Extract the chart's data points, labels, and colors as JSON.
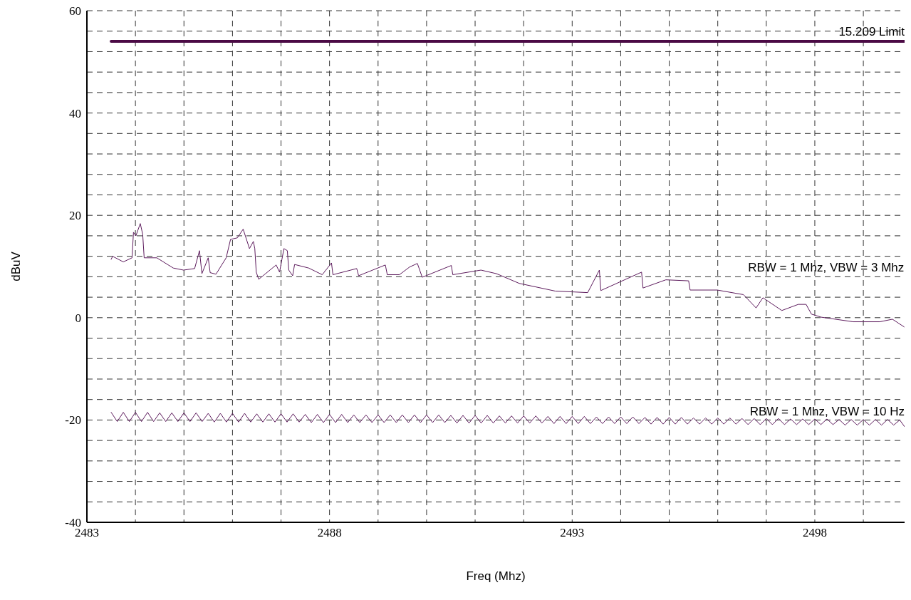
{
  "chart_data": {
    "type": "line",
    "xlabel": "Freq (Mhz)",
    "ylabel": "dBuV",
    "xlim": [
      2483,
      2499.85
    ],
    "xticks": [
      2483,
      {
        "value": 2484,
        "label": null
      },
      {
        "value": 2485,
        "label": null
      },
      {
        "value": 2486,
        "label": null
      },
      {
        "value": 2487,
        "label": null
      },
      2488,
      {
        "value": 2489,
        "label": null
      },
      {
        "value": 2490,
        "label": null
      },
      {
        "value": 2491,
        "label": null
      },
      {
        "value": 2492,
        "label": null
      },
      2493,
      {
        "value": 2494,
        "label": null
      },
      {
        "value": 2495,
        "label": null
      },
      {
        "value": 2496,
        "label": null
      },
      {
        "value": 2497,
        "label": null
      },
      2498,
      {
        "value": 2499,
        "label": null
      }
    ],
    "ylim": [
      -40,
      60
    ],
    "yticks": [
      -40,
      {
        "value": -36,
        "label": null
      },
      {
        "value": -32,
        "label": null
      },
      {
        "value": -28,
        "label": null
      },
      {
        "value": -24,
        "label": null
      },
      -20,
      {
        "value": -16,
        "label": null
      },
      {
        "value": -12,
        "label": null
      },
      {
        "value": -8,
        "label": null
      },
      {
        "value": -4,
        "label": null
      },
      0,
      {
        "value": 4,
        "label": null
      },
      {
        "value": 8,
        "label": null
      },
      {
        "value": 12,
        "label": null
      },
      {
        "value": 16,
        "label": null
      },
      20,
      {
        "value": 24,
        "label": null
      },
      {
        "value": 28,
        "label": null
      },
      {
        "value": 32,
        "label": null
      },
      {
        "value": 36,
        "label": null
      },
      40,
      {
        "value": 44,
        "label": null
      },
      {
        "value": 48,
        "label": null
      },
      {
        "value": 52,
        "label": null
      },
      {
        "value": 56,
        "label": null
      },
      60
    ],
    "grid": true,
    "series": [
      {
        "name": "15.209 Limit",
        "color": "#4b0a45",
        "x": [
          2483.5,
          2499.85
        ],
        "values": [
          54,
          54
        ]
      },
      {
        "name": "RBW = 1 Mhz, VBW = 3 Mhz",
        "color": "#5c1a5c",
        "x": [
          2483.5,
          2483.53,
          2483.75,
          2483.93,
          2483.96,
          2484.01,
          2484.1,
          2484.15,
          2484.18,
          2484.44,
          2484.78,
          2484.99,
          2485.22,
          2485.32,
          2485.37,
          2485.5,
          2485.54,
          2485.66,
          2485.87,
          2485.96,
          2486.1,
          2486.22,
          2486.35,
          2486.43,
          2486.46,
          2486.49,
          2486.54,
          2486.9,
          2486.97,
          2487.06,
          2487.13,
          2487.16,
          2487.24,
          2487.28,
          2487.57,
          2487.85,
          2488.04,
          2488.07,
          2488.56,
          2488.6,
          2489.15,
          2489.19,
          2489.44,
          2489.65,
          2489.81,
          2489.91,
          2490.51,
          2490.54,
          2491.12,
          2491.44,
          2491.91,
          2492.65,
          2493.32,
          2493.56,
          2493.59,
          2494.43,
          2494.46,
          2494.93,
          2495.4,
          2495.43,
          2495.99,
          2496.53,
          2496.79,
          2496.93,
          2497.32,
          2497.66,
          2497.82,
          2497.93,
          2498.13,
          2498.79,
          2499.34,
          2499.6,
          2499.84
        ],
        "values": [
          11.4,
          12,
          10.9,
          11.7,
          16.7,
          16,
          18.4,
          16.3,
          11.7,
          11.7,
          9.7,
          9.3,
          9.6,
          13.1,
          8.6,
          11.7,
          8.8,
          8.5,
          11.7,
          15.3,
          15.6,
          17.3,
          13.5,
          14.9,
          13.5,
          8.9,
          7.5,
          10.3,
          8.9,
          13.5,
          13.1,
          9.3,
          8.2,
          10.4,
          9.7,
          8.4,
          10.7,
          8.4,
          9.6,
          8.2,
          10.3,
          8.4,
          8.4,
          9.9,
          10.6,
          7.9,
          10.2,
          8.4,
          9.3,
          8.6,
          6.7,
          5.2,
          4.9,
          9.3,
          5.3,
          8.9,
          5.8,
          7.4,
          7.2,
          5.4,
          5.4,
          4.5,
          1.9,
          3.9,
          1.4,
          2.6,
          2.6,
          0.7,
          0.1,
          -0.8,
          -0.8,
          -0.3,
          -1.8
        ]
      },
      {
        "name": "RBW = 1 Mhz, VBW = 10 Hz",
        "color": "#5c1a5c",
        "x": [
          2483.5,
          2483.625,
          2483.75,
          2483.875,
          2484,
          2484.125,
          2484.25,
          2484.375,
          2484.5,
          2484.625,
          2484.75,
          2484.875,
          2485,
          2485.125,
          2485.25,
          2485.375,
          2485.5,
          2485.625,
          2485.75,
          2485.875,
          2486,
          2486.125,
          2486.25,
          2486.375,
          2486.5,
          2486.625,
          2486.75,
          2486.875,
          2487,
          2487.125,
          2487.25,
          2487.375,
          2487.5,
          2487.625,
          2487.75,
          2487.875,
          2488,
          2488.125,
          2488.25,
          2488.375,
          2488.5,
          2488.625,
          2488.75,
          2488.875,
          2489,
          2489.125,
          2489.25,
          2489.375,
          2489.5,
          2489.625,
          2489.75,
          2489.875,
          2490,
          2490.125,
          2490.25,
          2490.375,
          2490.5,
          2490.625,
          2490.75,
          2490.875,
          2491,
          2491.125,
          2491.25,
          2491.375,
          2491.5,
          2491.625,
          2491.75,
          2491.875,
          2492,
          2492.125,
          2492.25,
          2492.375,
          2492.5,
          2492.625,
          2492.75,
          2492.875,
          2493,
          2493.125,
          2493.25,
          2493.375,
          2493.5,
          2493.625,
          2493.75,
          2493.875,
          2494,
          2494.125,
          2494.25,
          2494.375,
          2494.5,
          2494.625,
          2494.75,
          2494.875,
          2495,
          2495.125,
          2495.25,
          2495.375,
          2495.5,
          2495.625,
          2495.75,
          2495.875,
          2496,
          2496.125,
          2496.25,
          2496.375,
          2496.5,
          2496.625,
          2496.75,
          2496.875,
          2497,
          2497.125,
          2497.25,
          2497.375,
          2497.5,
          2497.625,
          2497.75,
          2497.875,
          2498,
          2498.125,
          2498.25,
          2498.375,
          2498.5,
          2498.625,
          2498.75,
          2498.875,
          2499,
          2499.125,
          2499.25,
          2499.375,
          2499.5,
          2499.625,
          2499.75,
          2499.85
        ],
        "values": [
          -18.5,
          -20.3,
          -18.5,
          -20.3,
          -18.5,
          -20.3,
          -18.5,
          -20.3,
          -18.6,
          -20.3,
          -18.6,
          -20.3,
          -18.6,
          -20.3,
          -18.6,
          -20.3,
          -18.7,
          -20.4,
          -18.7,
          -20.4,
          -18.7,
          -20.4,
          -18.7,
          -20.4,
          -18.8,
          -20.4,
          -18.8,
          -20.4,
          -18.8,
          -20.4,
          -18.8,
          -20.4,
          -18.9,
          -20.5,
          -18.9,
          -20.5,
          -18.9,
          -20.5,
          -18.9,
          -20.5,
          -19,
          -20.5,
          -19,
          -20.5,
          -19,
          -20.5,
          -19,
          -20.5,
          -19,
          -20.5,
          -19,
          -20.5,
          -19,
          -20.5,
          -19,
          -20.5,
          -19.1,
          -20.6,
          -19.1,
          -20.6,
          -19.1,
          -20.6,
          -19.1,
          -20.6,
          -19.2,
          -20.6,
          -19.2,
          -20.6,
          -19.2,
          -20.6,
          -19.2,
          -20.6,
          -19.3,
          -20.7,
          -19.3,
          -20.7,
          -19.3,
          -20.7,
          -19.3,
          -20.7,
          -19.4,
          -20.7,
          -19.4,
          -20.7,
          -19.4,
          -20.7,
          -19.4,
          -20.7,
          -19.5,
          -20.8,
          -19.5,
          -20.8,
          -19.5,
          -20.8,
          -19.5,
          -20.8,
          -19.6,
          -20.8,
          -19.6,
          -20.8,
          -19.6,
          -20.8,
          -19.6,
          -20.8,
          -19.7,
          -20.9,
          -19.7,
          -20.9,
          -19.7,
          -20.9,
          -19.7,
          -20.9,
          -19.8,
          -20.9,
          -19.8,
          -20.9,
          -19.8,
          -20.9,
          -19.8,
          -20.9,
          -19.9,
          -21,
          -19.9,
          -21,
          -19.9,
          -21,
          -19.9,
          -21,
          -19.9,
          -21,
          -20,
          -21.3
        ]
      }
    ]
  }
}
